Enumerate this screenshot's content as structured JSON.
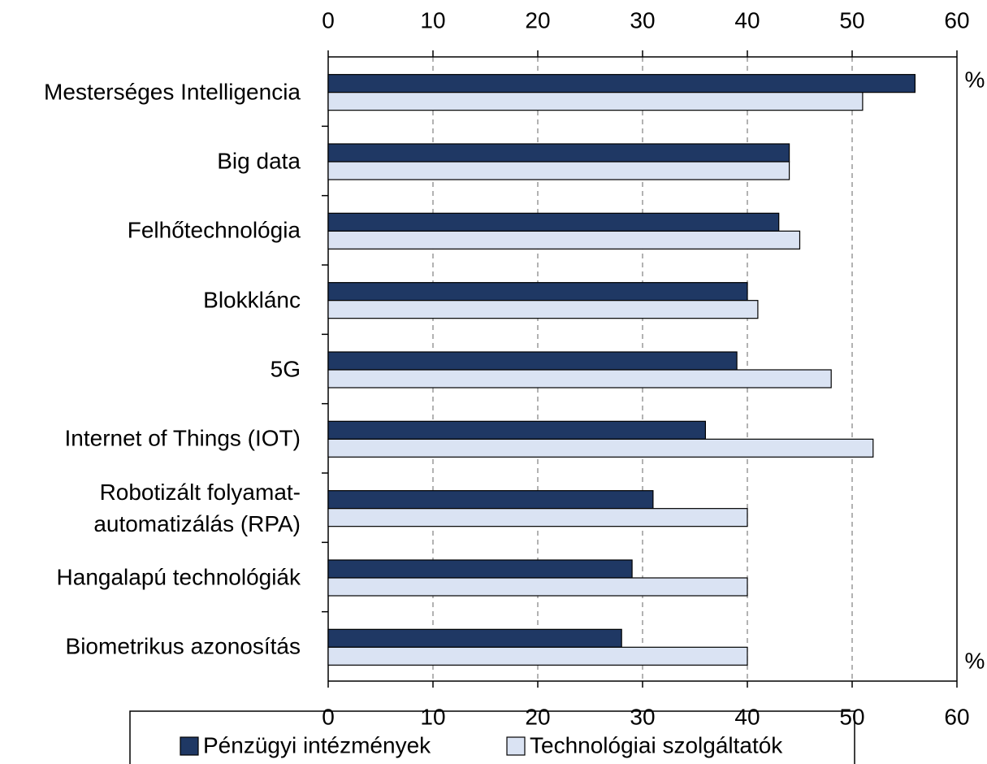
{
  "chart_data": {
    "type": "hbar",
    "categories": [
      "Mesterséges Intelligencia",
      "Big data",
      "Felhőtechnológia",
      "Blokklánc",
      "5G",
      "Internet of Things (IOT)",
      "Robotizált folyamat-\nautomatizálás (RPA)",
      "Hangalapú technológiák",
      "Biometrikus azonosítás"
    ],
    "series": [
      {
        "name": "Pénzügyi intézmények",
        "color": "#1f3864",
        "values": [
          56,
          44,
          43,
          40,
          39,
          36,
          31,
          29,
          28
        ]
      },
      {
        "name": "Technológiai szolgáltatók",
        "color": "#dae3f3",
        "values": [
          51,
          44,
          45,
          41,
          48,
          52,
          40,
          40,
          40
        ]
      }
    ],
    "xlim": [
      0,
      60
    ],
    "xticks": [
      0,
      10,
      20,
      30,
      40,
      50,
      60
    ],
    "unit": "%",
    "grid": true,
    "legend": "bottom"
  }
}
